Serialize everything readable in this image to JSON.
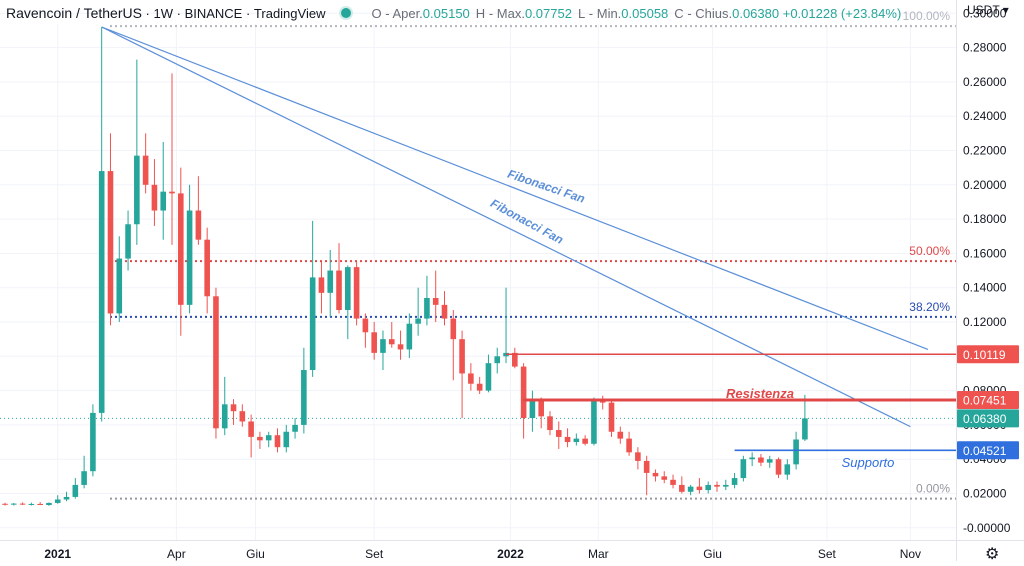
{
  "header": {
    "title": "Ravencoin / TetherUS",
    "interval": "1W",
    "exchange": "BINANCE",
    "source": "TradingView",
    "o_label": "O",
    "open_label": "- Aper.",
    "open_value": "0.05150",
    "h_label": "H",
    "high_label": "- Max.",
    "high_value": "0.07752",
    "l_label": "L",
    "low_label": "- Min.",
    "low_value": "0.05058",
    "c_label": "C",
    "close_label": "- Chius.",
    "close_value": "0.06380",
    "change_value": "+0.01228 (+23.84%)",
    "currency": "USDT",
    "status_color": "#26a69a"
  },
  "chart_data": {
    "type": "candlestick",
    "timeframe": "1W",
    "x_tick_labels": [
      "2021",
      "Apr",
      "Giu",
      "Set",
      "2022",
      "Mar",
      "Giu",
      "Set",
      "Nov"
    ],
    "y_tick_labels": [
      "-0.00000",
      "0.02000",
      "0.04000",
      "0.06000",
      "0.08000",
      "0.10000",
      "0.12000",
      "0.14000",
      "0.16000",
      "0.18000",
      "0.20000",
      "0.22000",
      "0.24000",
      "0.26000",
      "0.28000",
      "0.30000"
    ],
    "ylim": [
      -0.004,
      0.3
    ],
    "colors": {
      "up": "#26a69a",
      "down": "#ef5350",
      "fib_fan": "#5b8fd8",
      "resistance": "#e04848",
      "support": "#2f6fde",
      "level_50": "#e04848",
      "level_382": "#2a4cb0",
      "level_0": "#9598a1",
      "level_100": "#b2b5be"
    },
    "candles": [
      {
        "x": 1,
        "o": 0.014,
        "h": 0.0146,
        "l": 0.013,
        "c": 0.0137
      },
      {
        "x": 2,
        "o": 0.0137,
        "h": 0.0145,
        "l": 0.013,
        "c": 0.0141
      },
      {
        "x": 3,
        "o": 0.0141,
        "h": 0.0148,
        "l": 0.0133,
        "c": 0.0136
      },
      {
        "x": 4,
        "o": 0.0136,
        "h": 0.0147,
        "l": 0.013,
        "c": 0.0139
      },
      {
        "x": 5,
        "o": 0.0139,
        "h": 0.015,
        "l": 0.0132,
        "c": 0.0133
      },
      {
        "x": 6,
        "o": 0.0133,
        "h": 0.0148,
        "l": 0.0128,
        "c": 0.0145
      },
      {
        "x": 7,
        "o": 0.0145,
        "h": 0.019,
        "l": 0.014,
        "c": 0.0165
      },
      {
        "x": 8,
        "o": 0.0165,
        "h": 0.021,
        "l": 0.0155,
        "c": 0.018
      },
      {
        "x": 9,
        "o": 0.018,
        "h": 0.029,
        "l": 0.017,
        "c": 0.025
      },
      {
        "x": 10,
        "o": 0.025,
        "h": 0.042,
        "l": 0.023,
        "c": 0.033
      },
      {
        "x": 11,
        "o": 0.033,
        "h": 0.072,
        "l": 0.03,
        "c": 0.067
      },
      {
        "x": 12,
        "o": 0.067,
        "h": 0.292,
        "l": 0.062,
        "c": 0.208
      },
      {
        "x": 13,
        "o": 0.208,
        "h": 0.23,
        "l": 0.118,
        "c": 0.125
      },
      {
        "x": 14,
        "o": 0.125,
        "h": 0.17,
        "l": 0.12,
        "c": 0.157
      },
      {
        "x": 15,
        "o": 0.157,
        "h": 0.185,
        "l": 0.15,
        "c": 0.177
      },
      {
        "x": 16,
        "o": 0.177,
        "h": 0.273,
        "l": 0.165,
        "c": 0.217
      },
      {
        "x": 17,
        "o": 0.217,
        "h": 0.23,
        "l": 0.195,
        "c": 0.2
      },
      {
        "x": 18,
        "o": 0.2,
        "h": 0.215,
        "l": 0.176,
        "c": 0.185
      },
      {
        "x": 19,
        "o": 0.185,
        "h": 0.225,
        "l": 0.168,
        "c": 0.196
      },
      {
        "x": 20,
        "o": 0.196,
        "h": 0.265,
        "l": 0.165,
        "c": 0.195
      },
      {
        "x": 21,
        "o": 0.195,
        "h": 0.21,
        "l": 0.112,
        "c": 0.13
      },
      {
        "x": 22,
        "o": 0.13,
        "h": 0.2,
        "l": 0.125,
        "c": 0.185
      },
      {
        "x": 23,
        "o": 0.185,
        "h": 0.205,
        "l": 0.165,
        "c": 0.168
      },
      {
        "x": 24,
        "o": 0.168,
        "h": 0.175,
        "l": 0.125,
        "c": 0.135
      },
      {
        "x": 25,
        "o": 0.135,
        "h": 0.14,
        "l": 0.052,
        "c": 0.058
      },
      {
        "x": 26,
        "o": 0.058,
        "h": 0.088,
        "l": 0.054,
        "c": 0.072
      },
      {
        "x": 27,
        "o": 0.072,
        "h": 0.075,
        "l": 0.06,
        "c": 0.068
      },
      {
        "x": 28,
        "o": 0.068,
        "h": 0.072,
        "l": 0.059,
        "c": 0.062
      },
      {
        "x": 29,
        "o": 0.062,
        "h": 0.066,
        "l": 0.041,
        "c": 0.053
      },
      {
        "x": 30,
        "o": 0.053,
        "h": 0.056,
        "l": 0.046,
        "c": 0.051
      },
      {
        "x": 31,
        "o": 0.051,
        "h": 0.056,
        "l": 0.047,
        "c": 0.054
      },
      {
        "x": 32,
        "o": 0.054,
        "h": 0.058,
        "l": 0.044,
        "c": 0.047
      },
      {
        "x": 33,
        "o": 0.047,
        "h": 0.06,
        "l": 0.044,
        "c": 0.056
      },
      {
        "x": 34,
        "o": 0.056,
        "h": 0.064,
        "l": 0.052,
        "c": 0.06
      },
      {
        "x": 35,
        "o": 0.06,
        "h": 0.105,
        "l": 0.055,
        "c": 0.092
      },
      {
        "x": 36,
        "o": 0.092,
        "h": 0.179,
        "l": 0.088,
        "c": 0.146
      },
      {
        "x": 37,
        "o": 0.146,
        "h": 0.155,
        "l": 0.125,
        "c": 0.137
      },
      {
        "x": 38,
        "o": 0.137,
        "h": 0.162,
        "l": 0.123,
        "c": 0.15
      },
      {
        "x": 39,
        "o": 0.15,
        "h": 0.166,
        "l": 0.125,
        "c": 0.127
      },
      {
        "x": 40,
        "o": 0.127,
        "h": 0.153,
        "l": 0.11,
        "c": 0.152
      },
      {
        "x": 41,
        "o": 0.152,
        "h": 0.155,
        "l": 0.118,
        "c": 0.122
      },
      {
        "x": 42,
        "o": 0.122,
        "h": 0.125,
        "l": 0.105,
        "c": 0.114
      },
      {
        "x": 43,
        "o": 0.114,
        "h": 0.12,
        "l": 0.098,
        "c": 0.102
      },
      {
        "x": 44,
        "o": 0.102,
        "h": 0.115,
        "l": 0.092,
        "c": 0.11
      },
      {
        "x": 45,
        "o": 0.11,
        "h": 0.12,
        "l": 0.105,
        "c": 0.107
      },
      {
        "x": 46,
        "o": 0.107,
        "h": 0.115,
        "l": 0.098,
        "c": 0.104
      },
      {
        "x": 47,
        "o": 0.104,
        "h": 0.125,
        "l": 0.099,
        "c": 0.119
      },
      {
        "x": 48,
        "o": 0.119,
        "h": 0.14,
        "l": 0.112,
        "c": 0.122
      },
      {
        "x": 49,
        "o": 0.122,
        "h": 0.147,
        "l": 0.118,
        "c": 0.134
      },
      {
        "x": 50,
        "o": 0.134,
        "h": 0.15,
        "l": 0.12,
        "c": 0.13
      },
      {
        "x": 51,
        "o": 0.13,
        "h": 0.138,
        "l": 0.118,
        "c": 0.122
      },
      {
        "x": 52,
        "o": 0.122,
        "h": 0.127,
        "l": 0.086,
        "c": 0.11
      },
      {
        "x": 53,
        "o": 0.11,
        "h": 0.115,
        "l": 0.064,
        "c": 0.09
      },
      {
        "x": 54,
        "o": 0.09,
        "h": 0.096,
        "l": 0.08,
        "c": 0.084
      },
      {
        "x": 55,
        "o": 0.084,
        "h": 0.088,
        "l": 0.078,
        "c": 0.08
      },
      {
        "x": 56,
        "o": 0.08,
        "h": 0.101,
        "l": 0.079,
        "c": 0.096
      },
      {
        "x": 57,
        "o": 0.096,
        "h": 0.105,
        "l": 0.09,
        "c": 0.1
      },
      {
        "x": 58,
        "o": 0.1,
        "h": 0.14,
        "l": 0.096,
        "c": 0.102
      },
      {
        "x": 59,
        "o": 0.102,
        "h": 0.105,
        "l": 0.093,
        "c": 0.094
      },
      {
        "x": 60,
        "o": 0.094,
        "h": 0.096,
        "l": 0.052,
        "c": 0.064
      },
      {
        "x": 61,
        "o": 0.064,
        "h": 0.08,
        "l": 0.056,
        "c": 0.074
      },
      {
        "x": 62,
        "o": 0.074,
        "h": 0.076,
        "l": 0.058,
        "c": 0.065
      },
      {
        "x": 63,
        "o": 0.065,
        "h": 0.068,
        "l": 0.054,
        "c": 0.057
      },
      {
        "x": 64,
        "o": 0.057,
        "h": 0.062,
        "l": 0.046,
        "c": 0.053
      },
      {
        "x": 65,
        "o": 0.053,
        "h": 0.058,
        "l": 0.047,
        "c": 0.05
      },
      {
        "x": 66,
        "o": 0.05,
        "h": 0.055,
        "l": 0.048,
        "c": 0.052
      },
      {
        "x": 67,
        "o": 0.052,
        "h": 0.054,
        "l": 0.048,
        "c": 0.049
      },
      {
        "x": 68,
        "o": 0.049,
        "h": 0.076,
        "l": 0.048,
        "c": 0.074
      },
      {
        "x": 69,
        "o": 0.074,
        "h": 0.077,
        "l": 0.069,
        "c": 0.073
      },
      {
        "x": 70,
        "o": 0.073,
        "h": 0.075,
        "l": 0.053,
        "c": 0.056
      },
      {
        "x": 71,
        "o": 0.056,
        "h": 0.059,
        "l": 0.049,
        "c": 0.052
      },
      {
        "x": 72,
        "o": 0.052,
        "h": 0.056,
        "l": 0.042,
        "c": 0.044
      },
      {
        "x": 73,
        "o": 0.044,
        "h": 0.047,
        "l": 0.034,
        "c": 0.039
      },
      {
        "x": 74,
        "o": 0.039,
        "h": 0.042,
        "l": 0.019,
        "c": 0.032
      },
      {
        "x": 75,
        "o": 0.032,
        "h": 0.034,
        "l": 0.027,
        "c": 0.03
      },
      {
        "x": 76,
        "o": 0.03,
        "h": 0.033,
        "l": 0.026,
        "c": 0.028
      },
      {
        "x": 77,
        "o": 0.028,
        "h": 0.031,
        "l": 0.023,
        "c": 0.025
      },
      {
        "x": 78,
        "o": 0.025,
        "h": 0.03,
        "l": 0.02,
        "c": 0.021
      },
      {
        "x": 79,
        "o": 0.021,
        "h": 0.025,
        "l": 0.019,
        "c": 0.024
      },
      {
        "x": 80,
        "o": 0.024,
        "h": 0.029,
        "l": 0.02,
        "c": 0.022
      },
      {
        "x": 81,
        "o": 0.022,
        "h": 0.027,
        "l": 0.02,
        "c": 0.025
      },
      {
        "x": 82,
        "o": 0.025,
        "h": 0.027,
        "l": 0.021,
        "c": 0.024
      },
      {
        "x": 83,
        "o": 0.024,
        "h": 0.028,
        "l": 0.022,
        "c": 0.025
      },
      {
        "x": 84,
        "o": 0.025,
        "h": 0.032,
        "l": 0.023,
        "c": 0.029
      },
      {
        "x": 85,
        "o": 0.029,
        "h": 0.042,
        "l": 0.027,
        "c": 0.04
      },
      {
        "x": 86,
        "o": 0.04,
        "h": 0.044,
        "l": 0.036,
        "c": 0.041
      },
      {
        "x": 87,
        "o": 0.041,
        "h": 0.043,
        "l": 0.036,
        "c": 0.038
      },
      {
        "x": 88,
        "o": 0.038,
        "h": 0.042,
        "l": 0.035,
        "c": 0.04
      },
      {
        "x": 89,
        "o": 0.04,
        "h": 0.041,
        "l": 0.029,
        "c": 0.031
      },
      {
        "x": 90,
        "o": 0.031,
        "h": 0.04,
        "l": 0.028,
        "c": 0.037
      },
      {
        "x": 91,
        "o": 0.037,
        "h": 0.056,
        "l": 0.034,
        "c": 0.0515
      },
      {
        "x": 92,
        "o": 0.0515,
        "h": 0.0775,
        "l": 0.0506,
        "c": 0.0638
      }
    ],
    "drawings": {
      "fib_fan_origin": {
        "x": 12,
        "y": 0.292
      },
      "fib_fan_lines": [
        {
          "label": "Fibonacci Fan",
          "end": {
            "x": 106,
            "y": 0.104
          }
        },
        {
          "label": "Fibonacci Fan",
          "end": {
            "x": 104,
            "y": 0.059
          }
        }
      ],
      "fib_levels": [
        {
          "label": "100.00%",
          "y": 0.2925
        },
        {
          "label": "50.00%",
          "y": 0.1555
        },
        {
          "label": "38.20%",
          "y": 0.123
        },
        {
          "label": "0.00%",
          "y": 0.017
        }
      ],
      "horizontal_rays": [
        {
          "role": "resistance_upper",
          "y": 0.10119,
          "x_start": 58
        },
        {
          "role": "resistance",
          "y": 0.07451,
          "x_start": 60
        },
        {
          "role": "support",
          "y": 0.04521,
          "x_start": 84
        }
      ],
      "annotations": {
        "resistance": "Resistenza",
        "support": "Supporto"
      }
    },
    "price_labels": [
      {
        "text": "0.10119",
        "y": 0.10119,
        "color": "#ef5350"
      },
      {
        "text": "0.07451",
        "y": 0.07451,
        "color": "#ef5350"
      },
      {
        "text": "0.06380",
        "y": 0.0638,
        "color": "#26a69a"
      },
      {
        "text": "0.04521",
        "y": 0.04521,
        "color": "#2f6fde"
      }
    ],
    "last_price": 0.0638
  }
}
